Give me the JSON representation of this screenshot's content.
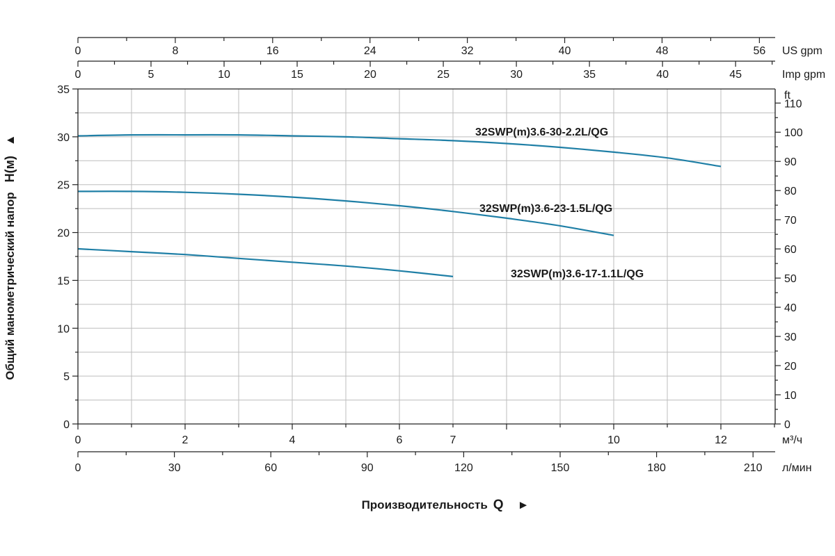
{
  "chart_data": {
    "type": "line",
    "ylabel": "Общий манометрический напор",
    "ylabel_symbol": "H(м)",
    "ylabel_arrow": "▲",
    "xlabel": "Производительность",
    "xlabel_symbol": "Q",
    "xlabel_arrow": "►",
    "grid": true,
    "x_axis_primary": {
      "unit": "м³/ч",
      "range": [
        0,
        13
      ],
      "ticks": [
        0,
        2,
        4,
        6,
        7,
        10,
        12
      ]
    },
    "x_axis_bottom": {
      "unit": "л/мин",
      "ticks": [
        0,
        30,
        60,
        90,
        120,
        150,
        180,
        210
      ]
    },
    "x_axis_top_us": {
      "unit": "US gpm",
      "ticks": [
        0,
        8,
        16,
        24,
        32,
        40,
        48,
        56
      ]
    },
    "x_axis_top_imp": {
      "unit": "Imp gpm",
      "ticks": [
        0,
        5,
        10,
        15,
        20,
        25,
        30,
        35,
        40,
        45
      ]
    },
    "y_axis_left": {
      "unit": "м",
      "range": [
        0,
        35
      ],
      "ticks": [
        0,
        5,
        10,
        15,
        20,
        25,
        30,
        35
      ]
    },
    "y_axis_right": {
      "unit": "ft",
      "ticks": [
        0,
        10,
        20,
        30,
        40,
        50,
        60,
        70,
        80,
        90,
        100,
        110
      ]
    },
    "series": [
      {
        "name": "32SWP(m)3.6-30-2.2L/QG",
        "x": [
          0,
          1,
          2,
          3,
          4,
          5,
          6,
          7,
          8,
          9,
          10,
          11,
          12
        ],
        "y": [
          30.1,
          30.2,
          30.2,
          30.2,
          30.1,
          30.0,
          29.8,
          29.6,
          29.3,
          28.9,
          28.4,
          27.8,
          26.9
        ]
      },
      {
        "name": "32SWP(m)3.6-23-1.5L/QG",
        "x": [
          0,
          1,
          2,
          3,
          4,
          5,
          6,
          7,
          8,
          9,
          10
        ],
        "y": [
          24.3,
          24.3,
          24.2,
          24.0,
          23.7,
          23.3,
          22.8,
          22.2,
          21.5,
          20.7,
          19.7
        ]
      },
      {
        "name": "32SWP(m)3.6-17-1.1L/QG",
        "x": [
          0,
          1,
          2,
          3,
          4,
          5,
          6,
          7
        ],
        "y": [
          18.3,
          18.0,
          17.7,
          17.3,
          16.9,
          16.5,
          16.0,
          15.4
        ]
      }
    ]
  }
}
